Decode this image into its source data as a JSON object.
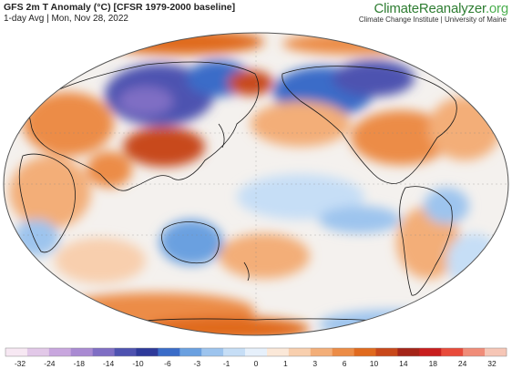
{
  "header": {
    "title": "GFS 2m T Anomaly (°C) [CFSR 1979-2000 baseline]",
    "subtitle": "1-day Avg | Mon, Nov 28, 2022",
    "brand_main": "ClimateReanalyzer",
    "brand_suffix": ".org",
    "brand_sub": "Climate Change Institute | University of Maine"
  },
  "legend": {
    "tick_labels": [
      "-32",
      "-24",
      "-18",
      "-14",
      "-10",
      "-6",
      "-3",
      "-1",
      "0",
      "1",
      "3",
      "6",
      "10",
      "14",
      "18",
      "24",
      "32"
    ],
    "colors": [
      "#f7e8f3",
      "#e2c8e8",
      "#c8a6de",
      "#a98ad2",
      "#7f6ec4",
      "#4e52b0",
      "#2e3a9a",
      "#3a6cc8",
      "#6aa0e0",
      "#9dc4ee",
      "#c6def6",
      "#e6f0fb",
      "#fbe8d8",
      "#f8cfae",
      "#f3ae78",
      "#ec8c46",
      "#e06a1e",
      "#c8481a",
      "#a42418",
      "#c81e1e",
      "#e84a3a",
      "#f08c78",
      "#f6c6b6"
    ]
  },
  "map": {
    "projection": "Robinson-like elliptical world map, Pacific-centered",
    "ocean_base": "#f2f6fb",
    "coast_color": "#1a1a1a"
  }
}
